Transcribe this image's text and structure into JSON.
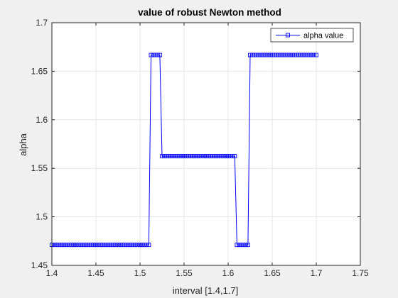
{
  "chart_data": {
    "type": "line",
    "title": "value of robust Newton method",
    "xlabel": "interval [1.4,1.7]",
    "ylabel": "alpha",
    "xlim": [
      1.4,
      1.75
    ],
    "ylim": [
      1.45,
      1.7
    ],
    "xticks": [
      1.4,
      1.45,
      1.5,
      1.55,
      1.6,
      1.65,
      1.7,
      1.75
    ],
    "yticks": [
      1.45,
      1.5,
      1.55,
      1.6,
      1.65,
      1.7
    ],
    "xtick_labels": [
      "1.4",
      "1.45",
      "1.5",
      "1.55",
      "1.6",
      "1.65",
      "1.7",
      "1.75"
    ],
    "ytick_labels": [
      "1.45",
      "1.5",
      "1.55",
      "1.6",
      "1.65",
      "1.7"
    ],
    "grid": true,
    "legend_position": "top-right",
    "series": [
      {
        "name": "alpha value",
        "color": "#0000ff",
        "marker": "square",
        "segments": [
          {
            "x_start": 1.4,
            "x_end": 1.51,
            "y": 1.4711
          },
          {
            "x_start": 1.5125,
            "x_end": 1.5225,
            "y": 1.6667
          },
          {
            "x_start": 1.525,
            "x_end": 1.6075,
            "y": 1.5625
          },
          {
            "x_start": 1.61,
            "x_end": 1.6225,
            "y": 1.4711
          },
          {
            "x_start": 1.625,
            "x_end": 1.7,
            "y": 1.6667
          }
        ],
        "x_step": 0.0025
      }
    ]
  }
}
